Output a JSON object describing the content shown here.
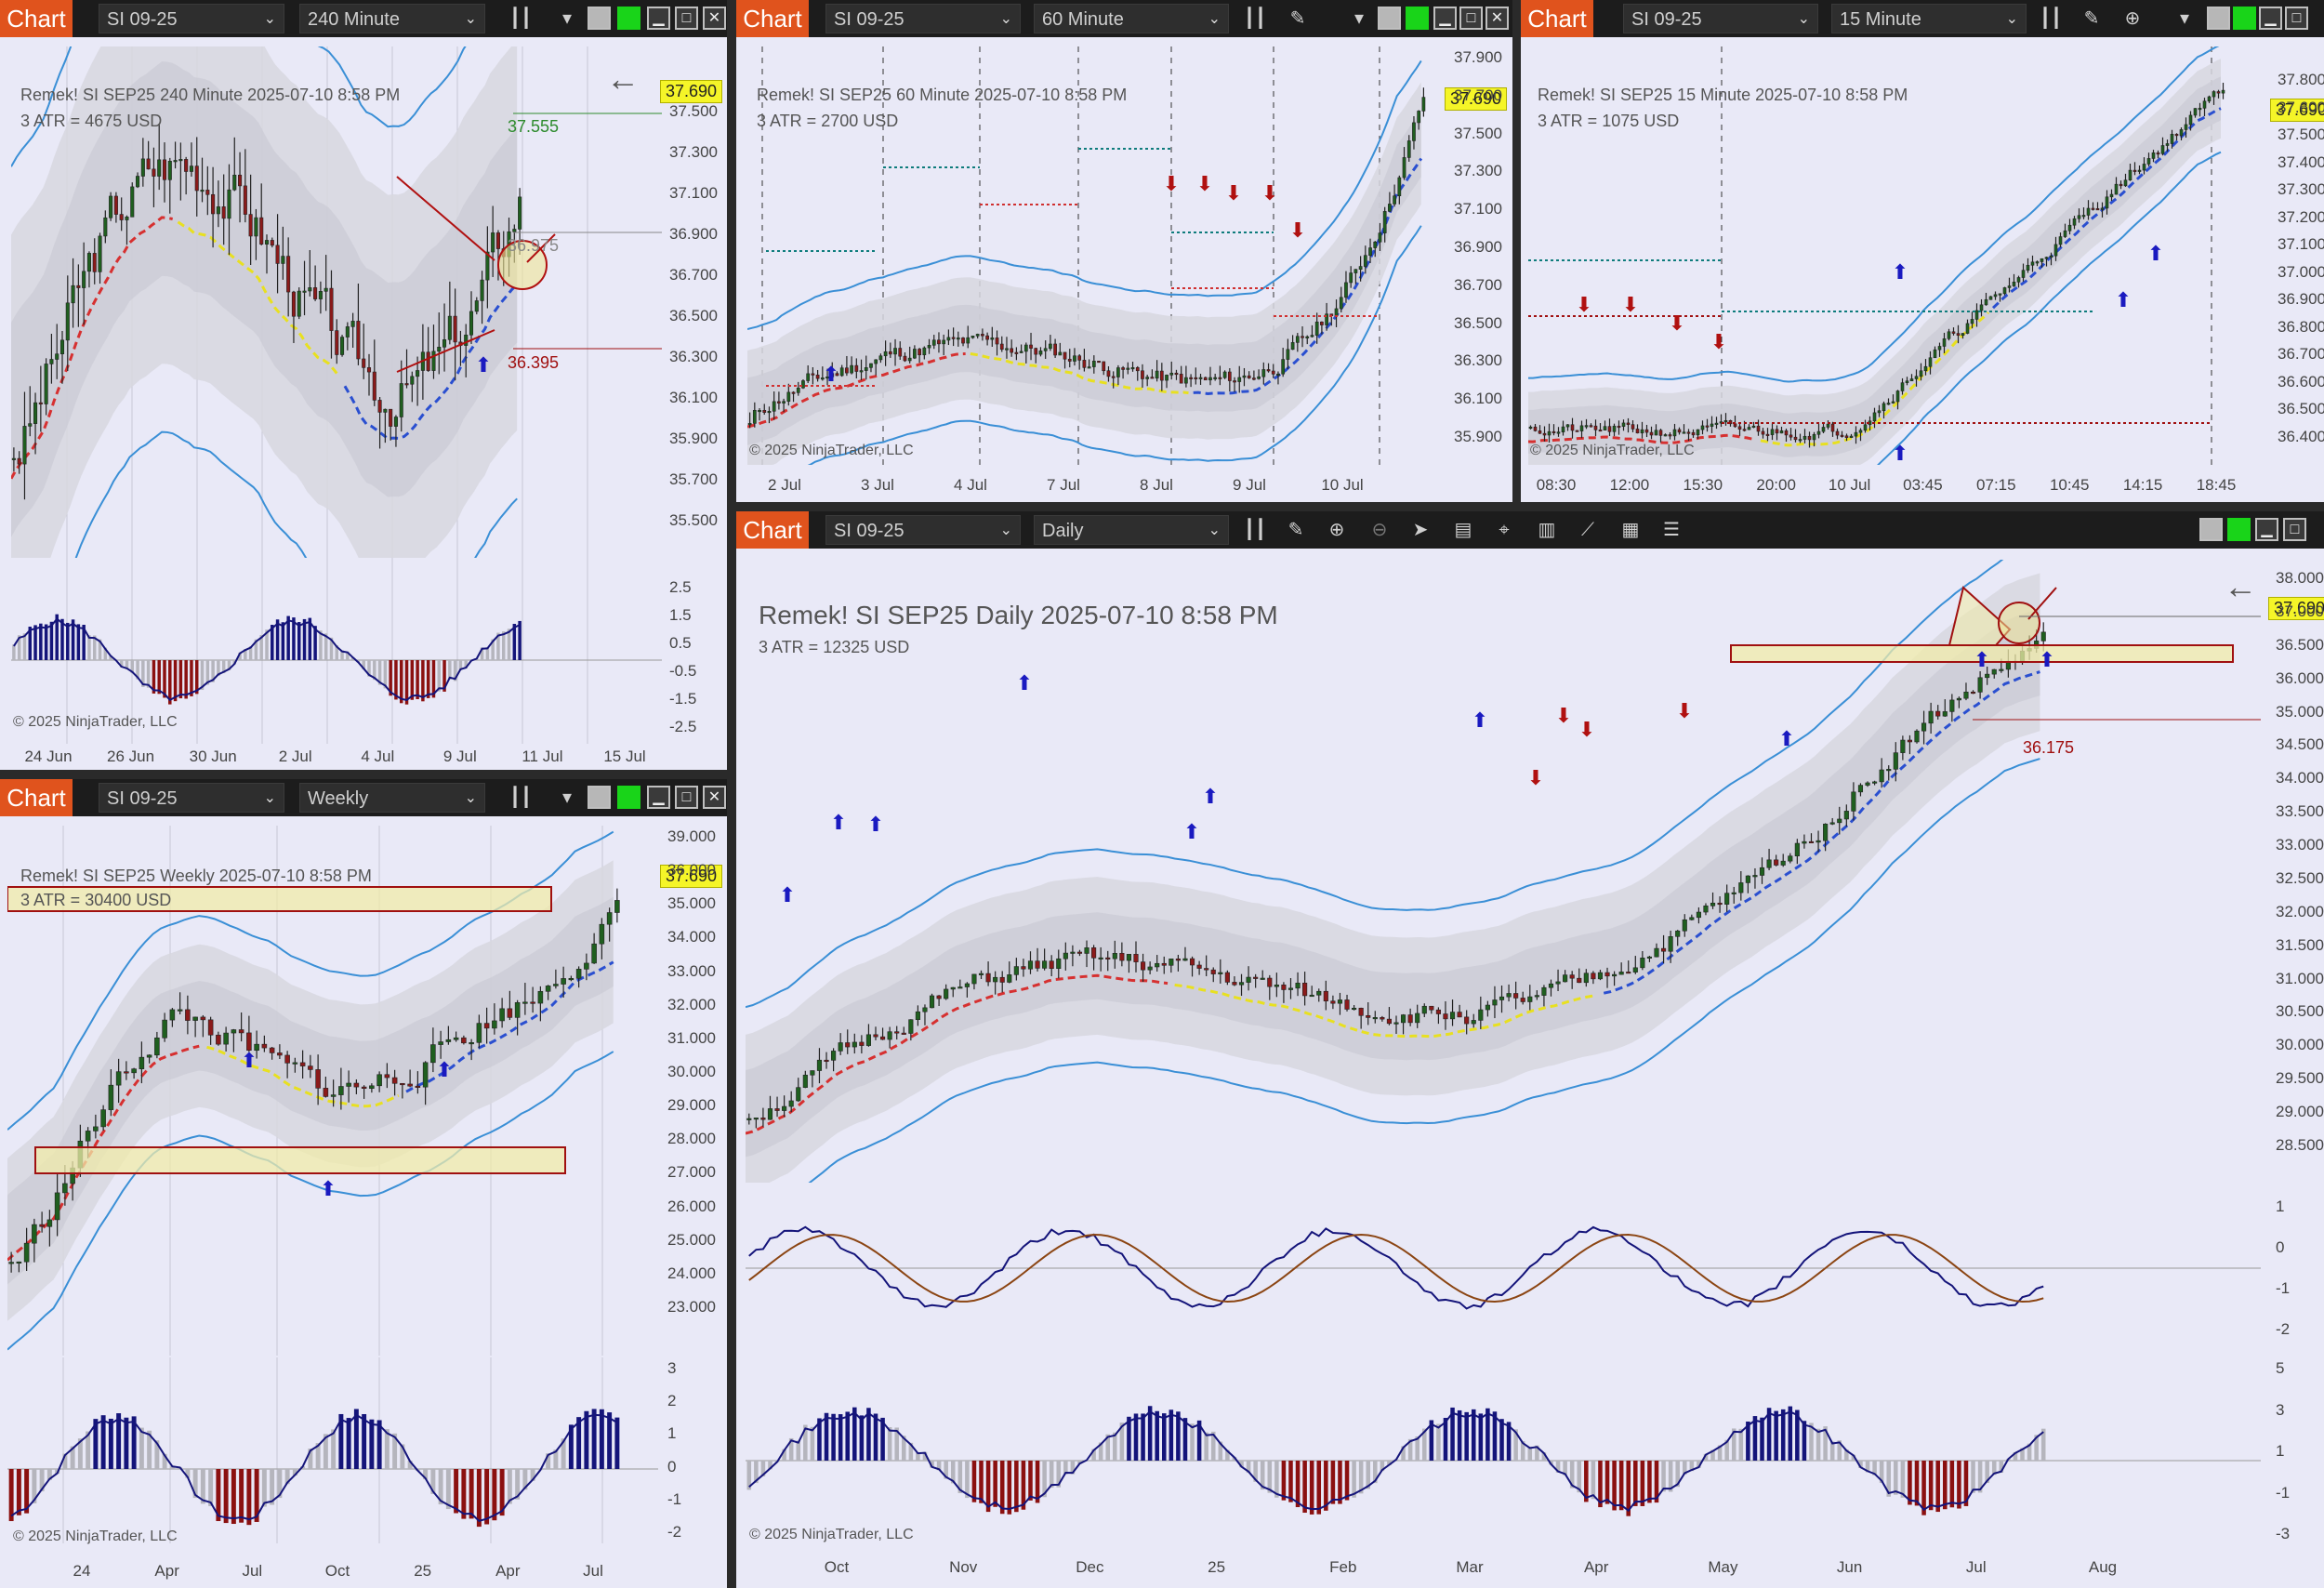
{
  "brand": "Chart",
  "windows": {
    "w240": {
      "instrument": "SI 09-25",
      "interval": "240 Minute",
      "title": "Remek!  SI SEP25  240 Minute  2025-07-10 8:58 PM",
      "atr": "3 ATR = 4675 USD",
      "price_labels": [
        "37.500",
        "37.300",
        "37.100",
        "36.900",
        "36.700",
        "36.500",
        "36.300",
        "36.100",
        "35.900",
        "35.700",
        "35.500"
      ],
      "osc_labels": [
        "2.5",
        "1.5",
        "0.5",
        "-0.5",
        "-1.5",
        "-2.5"
      ],
      "time_labels": [
        "24 Jun",
        "26 Jun",
        "30 Jun",
        "2 Jul",
        "4 Jul",
        "9 Jul",
        "11 Jul",
        "15 Jul"
      ],
      "last_price": "37.690",
      "level_green": "37.555",
      "level_mid": "36.975",
      "level_red": "36.395",
      "copyright": "© 2025 NinjaTrader, LLC"
    },
    "w60": {
      "instrument": "SI 09-25",
      "interval": "60 Minute",
      "title": "Remek!  SI SEP25  60 Minute  2025-07-10 8:58 PM",
      "atr": "3 ATR = 2700 USD",
      "price_labels": [
        "37.900",
        "37.700",
        "37.500",
        "37.300",
        "37.100",
        "36.900",
        "36.700",
        "36.500",
        "36.300",
        "36.100",
        "35.900"
      ],
      "time_labels": [
        "2 Jul",
        "3 Jul",
        "4 Jul",
        "7 Jul",
        "8 Jul",
        "9 Jul",
        "10 Jul"
      ],
      "last_price": "37.690",
      "copyright": "© 2025 NinjaTrader, LLC"
    },
    "w15": {
      "instrument": "SI 09-25",
      "interval": "15 Minute",
      "title": "Remek!  SI SEP25  15 Minute  2025-07-10 8:58 PM",
      "atr": "3 ATR = 1075 USD",
      "price_labels": [
        "37.800",
        "37.600",
        "37.500",
        "37.400",
        "37.300",
        "37.200",
        "37.100",
        "37.000",
        "36.900",
        "36.800",
        "36.700",
        "36.600",
        "36.500",
        "36.400"
      ],
      "time_labels": [
        "08:30",
        "12:00",
        "15:30",
        "20:00",
        "10 Jul",
        "03:45",
        "07:15",
        "10:45",
        "14:15",
        "18:45"
      ],
      "last_price": "37.690",
      "copyright": "© 2025 NinjaTrader, LLC"
    },
    "weekly": {
      "instrument": "SI 09-25",
      "interval": "Weekly",
      "title": "Remek!  SI SEP25  Weekly  2025-07-10 8:58 PM",
      "atr": "3 ATR = 30400 USD",
      "price_labels": [
        "39.000",
        "36.000",
        "35.000",
        "34.000",
        "33.000",
        "32.000",
        "31.000",
        "30.000",
        "29.000",
        "28.000",
        "27.000",
        "26.000",
        "25.000",
        "24.000",
        "23.000"
      ],
      "osc_labels": [
        "3",
        "2",
        "1",
        "0",
        "-1",
        "-2"
      ],
      "time_labels": [
        "24",
        "Apr",
        "Jul",
        "Oct",
        "25",
        "Apr",
        "Jul"
      ],
      "last_price": "37.690",
      "copyright": "© 2025 NinjaTrader, LLC"
    },
    "daily": {
      "instrument": "SI 09-25",
      "interval": "Daily",
      "title": "Remek!  SI SEP25  Daily  2025-07-10 8:58 PM",
      "atr": "3 ATR = 12325 USD",
      "price_labels": [
        "38.000",
        "37.000",
        "36.500",
        "36.000",
        "35.000",
        "34.500",
        "34.000",
        "33.500",
        "33.000",
        "32.500",
        "32.000",
        "31.500",
        "31.000",
        "30.500",
        "30.000",
        "29.500",
        "29.000",
        "28.500"
      ],
      "osc1_labels": [
        "1",
        "0",
        "-1",
        "-2"
      ],
      "osc2_labels": [
        "5",
        "3",
        "1",
        "-1",
        "-3"
      ],
      "time_labels": [
        "Oct",
        "Nov",
        "Dec",
        "25",
        "Feb",
        "Mar",
        "Apr",
        "May",
        "Jun",
        "Jul",
        "Aug"
      ],
      "last_price": "37.690",
      "level_red": "36.175",
      "copyright": "© 2025 NinjaTrader, LLC"
    }
  },
  "colors": {
    "brand": "#e0531d",
    "background": "#e9e9f7",
    "band": "#3a8fd6",
    "bull": "#1f5f1f",
    "bear": "#8b1a1a",
    "pricebadge": "#f5f528",
    "trend": "#2a4fd0",
    "stop": "#d63030"
  }
}
